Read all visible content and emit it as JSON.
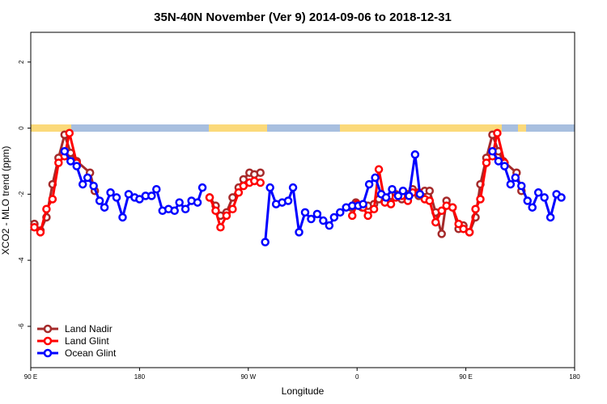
{
  "chart_data": {
    "type": "line",
    "title": "35N-40N November (Ver 9)   2014-09-06 to 2018-12-31",
    "xlabel": "Longitude",
    "ylabel": "XCO2 - MLO trend (ppm)",
    "xlim": [
      90,
      540
    ],
    "ylim": [
      -7.25,
      2.9
    ],
    "xticks": [
      {
        "value": 90,
        "label": "90 E"
      },
      180,
      {
        "value": 270,
        "label": "90 W"
      },
      {
        "value": 360,
        "label": "0"
      },
      {
        "value": 450,
        "label": "90 E"
      },
      {
        "value": 540,
        "label": "180"
      }
    ],
    "yticks": [
      2,
      0,
      -2,
      -4,
      -6
    ],
    "legend": "bottom-left",
    "series": [
      {
        "name": "Land Nadir",
        "color": "#a52a2a",
        "x": [
          93,
          98,
          103,
          108,
          113,
          118,
          123,
          128,
          139,
          143,
          190,
          238,
          243,
          247,
          252,
          257,
          262,
          266,
          271,
          275,
          280,
          318,
          355,
          359,
          364,
          369,
          374,
          378,
          383,
          388,
          392,
          397,
          402,
          406,
          411,
          416,
          420,
          425,
          430,
          434,
          439,
          444,
          448,
          453,
          458,
          462,
          467,
          472,
          477,
          481,
          492,
          496
        ],
        "values": [
          -2.9,
          -3.1,
          -2.7,
          -1.7,
          -0.9,
          -0.2,
          -0.75,
          -1.0,
          -1.35,
          -1.9,
          null,
          -2.1,
          -2.35,
          -2.65,
          -2.55,
          -2.1,
          -1.8,
          -1.55,
          -1.35,
          -1.4,
          -1.35,
          null,
          -2.4,
          -2.25,
          -2.4,
          -2.35,
          -2.3,
          -2.15,
          -2.2,
          -2.05,
          -2.0,
          -2.15,
          -2.0,
          -1.85,
          -2.05,
          -1.9,
          -1.9,
          -2.55,
          -3.2,
          -2.2,
          -2.4,
          -3.05,
          -2.95,
          -3.15,
          -2.7,
          -1.7,
          -0.9,
          -0.2,
          -0.7,
          -1.0,
          -1.35,
          -1.9
        ]
      },
      {
        "name": "Land Glint",
        "color": "#ff0000",
        "x": [
          93,
          98,
          103,
          108,
          113,
          118,
          122,
          128,
          183,
          238,
          243,
          247,
          252,
          257,
          262,
          266,
          271,
          275,
          280,
          318,
          356,
          360,
          365,
          369,
          374,
          378,
          383,
          388,
          392,
          397,
          402,
          406,
          411,
          416,
          420,
          425,
          430,
          434,
          439,
          444,
          448,
          453,
          458,
          462,
          467,
          472,
          476,
          482
        ],
        "values": [
          -3.0,
          -3.15,
          -2.45,
          -2.15,
          -1.05,
          -0.85,
          -0.15,
          -1.05,
          null,
          -2.1,
          -2.5,
          -3.0,
          -2.65,
          -2.45,
          -1.95,
          -1.75,
          -1.65,
          -1.6,
          -1.65,
          null,
          -2.65,
          -2.3,
          -2.4,
          -2.65,
          -2.45,
          -1.25,
          -2.25,
          -2.3,
          -2.1,
          -2.05,
          -2.2,
          -1.95,
          -1.95,
          -2.15,
          -2.2,
          -2.85,
          -2.5,
          -2.35,
          -2.4,
          -2.9,
          -3.05,
          -3.15,
          -2.45,
          -2.15,
          -1.05,
          -0.85,
          -0.15,
          -1.05
        ]
      },
      {
        "name": "Ocean Glint",
        "color": "#0000ff",
        "x": [
          118,
          123,
          128,
          133,
          137,
          142,
          147,
          151,
          156,
          161,
          166,
          171,
          176,
          180,
          185,
          190,
          194,
          199,
          204,
          209,
          213,
          218,
          223,
          228,
          232,
          258,
          284,
          288,
          293,
          298,
          303,
          307,
          312,
          317,
          322,
          327,
          332,
          337,
          341,
          346,
          351,
          356,
          361,
          365,
          370,
          375,
          380,
          384,
          389,
          394,
          398,
          403,
          408,
          412,
          442,
          472,
          477,
          482,
          487,
          491,
          496,
          501,
          505,
          510,
          515,
          520,
          525,
          529
        ],
        "values": [
          -0.7,
          -1.0,
          -1.15,
          -1.7,
          -1.5,
          -1.75,
          -2.2,
          -2.4,
          -1.95,
          -2.1,
          -2.7,
          -2.0,
          -2.1,
          -2.15,
          -2.05,
          -2.05,
          -1.85,
          -2.5,
          -2.45,
          -2.5,
          -2.25,
          -2.45,
          -2.2,
          -2.25,
          -1.8,
          null,
          -3.45,
          -1.8,
          -2.3,
          -2.25,
          -2.2,
          -1.8,
          -3.15,
          -2.55,
          -2.75,
          -2.6,
          -2.8,
          -2.95,
          -2.7,
          -2.55,
          -2.4,
          -2.35,
          -2.35,
          -2.3,
          -1.7,
          -1.5,
          -2.0,
          -2.1,
          -1.85,
          -2.05,
          -1.9,
          -2.05,
          -0.8,
          -2.0,
          null,
          -0.7,
          -1.0,
          -1.15,
          -1.7,
          -1.5,
          -1.75,
          -2.2,
          -2.4,
          -1.95,
          -2.1,
          -2.7,
          -2.0,
          -2.1
        ]
      }
    ]
  }
}
